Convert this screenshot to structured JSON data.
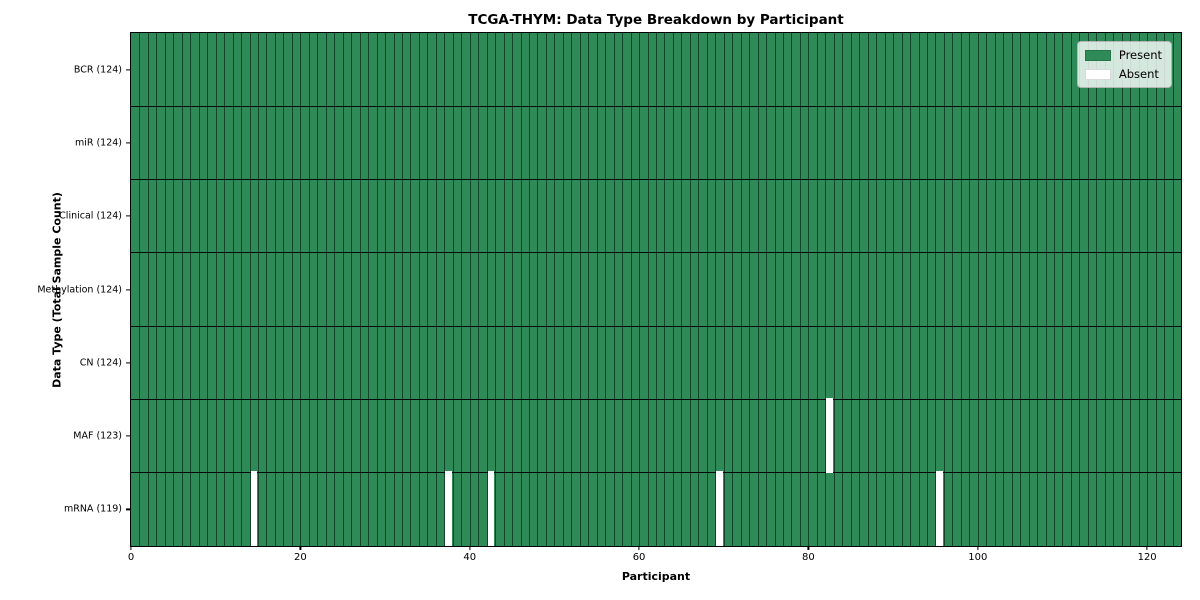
{
  "chart_data": {
    "type": "heatmap",
    "title": "TCGA-THYM: Data Type Breakdown by Participant",
    "xlabel": "Participant",
    "ylabel": "Data Type (Total Sample Count)",
    "n_participants": 124,
    "xlim": [
      0,
      124
    ],
    "x_ticks": [
      0,
      20,
      40,
      60,
      80,
      100,
      120
    ],
    "grid": true,
    "rows": [
      {
        "label": "BCR (124)",
        "data_type": "BCR",
        "present_count": 124,
        "absent_participants": []
      },
      {
        "label": "miR (124)",
        "data_type": "miR",
        "present_count": 124,
        "absent_participants": []
      },
      {
        "label": "Clinical (124)",
        "data_type": "Clinical",
        "present_count": 124,
        "absent_participants": []
      },
      {
        "label": "Methylation (124)",
        "data_type": "Methylation",
        "present_count": 124,
        "absent_participants": []
      },
      {
        "label": "CN (124)",
        "data_type": "CN",
        "present_count": 124,
        "absent_participants": []
      },
      {
        "label": "MAF (123)",
        "data_type": "MAF",
        "present_count": 123,
        "absent_participants": [
          82
        ]
      },
      {
        "label": "mRNA (119)",
        "data_type": "mRNA",
        "present_count": 119,
        "absent_participants": [
          14,
          37,
          42,
          69,
          95
        ]
      }
    ],
    "legend": {
      "position": "upper right",
      "items": [
        {
          "label": "Present",
          "color": "#2e8b57"
        },
        {
          "label": "Absent",
          "color": "#ffffff"
        }
      ]
    },
    "colors": {
      "present": "#2e8b57",
      "absent": "#ffffff",
      "cell_edge": "rgba(5,25,15,0.62)",
      "row_boundary": "#0a0a0a",
      "frame": "#000000",
      "background": "#ffffff"
    }
  }
}
